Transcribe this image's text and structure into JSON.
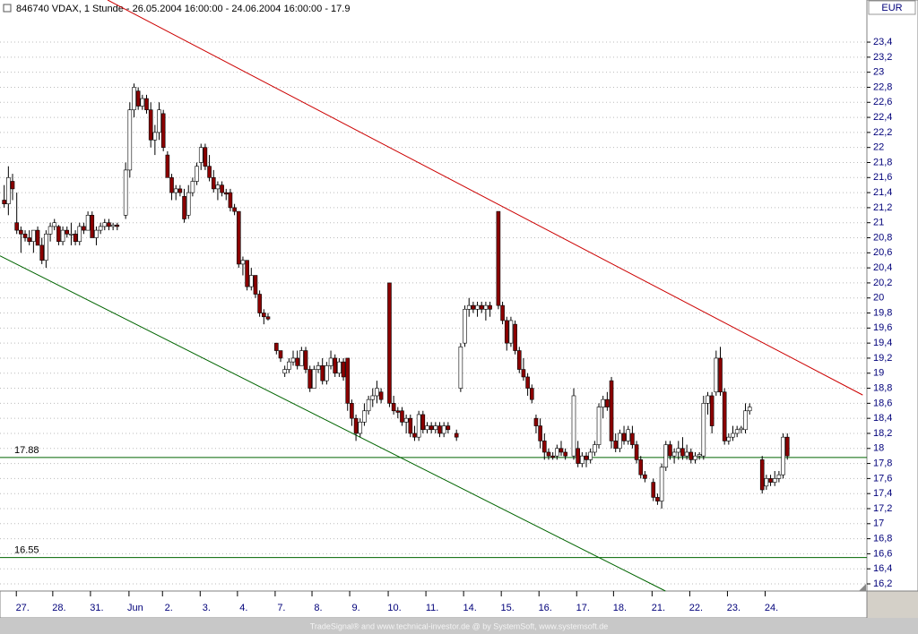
{
  "chart_data": {
    "type": "candlestick",
    "title": "846740  VDAX, 1 Stunde - 26.05.2004 16:00:00 - 24.06.2004 16:00:00 - 17.9",
    "currency": "EUR",
    "footer": "TradeSignal® and www.technical-investor.de @ by SystemSoft, www.systemsoft.de",
    "up_color": "#ffffff",
    "down_color": "#8b0000",
    "grid": true,
    "xlim": [
      0,
      207
    ],
    "ylim": [
      16.105,
      23.96
    ],
    "yticks": [
      {
        "value": 16.2,
        "label": "16,2"
      },
      {
        "value": 16.4,
        "label": "16,4"
      },
      {
        "value": 16.6,
        "label": "16,6"
      },
      {
        "value": 16.8,
        "label": "16,8"
      },
      17,
      {
        "value": 17.2,
        "label": "17,2"
      },
      {
        "value": 17.4,
        "label": "17,4"
      },
      {
        "value": 17.6,
        "label": "17,6"
      },
      {
        "value": 17.8,
        "label": "17,8"
      },
      18,
      {
        "value": 18.2,
        "label": "18,2"
      },
      {
        "value": 18.4,
        "label": "18,4"
      },
      {
        "value": 18.6,
        "label": "18,6"
      },
      {
        "value": 18.8,
        "label": "18,8"
      },
      19,
      {
        "value": 19.2,
        "label": "19,2"
      },
      {
        "value": 19.4,
        "label": "19,4"
      },
      {
        "value": 19.6,
        "label": "19,6"
      },
      {
        "value": 19.8,
        "label": "19,8"
      },
      20,
      {
        "value": 20.2,
        "label": "20,2"
      },
      {
        "value": 20.4,
        "label": "20,4"
      },
      {
        "value": 20.6,
        "label": "20,6"
      },
      {
        "value": 20.8,
        "label": "20,8"
      },
      21,
      {
        "value": 21.2,
        "label": "21,2"
      },
      {
        "value": 21.4,
        "label": "21,4"
      },
      {
        "value": 21.6,
        "label": "21,6"
      },
      {
        "value": 21.8,
        "label": "21,8"
      },
      22,
      {
        "value": 22.2,
        "label": "22,2"
      },
      {
        "value": 22.4,
        "label": "22,4"
      },
      {
        "value": 22.6,
        "label": "22,6"
      },
      {
        "value": 22.8,
        "label": "22,8"
      },
      23,
      {
        "value": 23.2,
        "label": "23,2"
      },
      {
        "value": 23.4,
        "label": "23,4"
      }
    ],
    "xticks": [
      {
        "value": 3.9,
        "label": "27."
      },
      {
        "value": 12.6,
        "label": "28."
      },
      {
        "value": 21.6,
        "label": "31."
      },
      {
        "value": 30.8,
        "label": "Jun"
      },
      {
        "value": 38.8,
        "label": "2."
      },
      {
        "value": 47.8,
        "label": "3."
      },
      {
        "value": 56.7,
        "label": "4."
      },
      {
        "value": 65.7,
        "label": "7."
      },
      {
        "value": 74.5,
        "label": "8."
      },
      {
        "value": 83.5,
        "label": "9."
      },
      {
        "value": 92.7,
        "label": "10."
      },
      {
        "value": 101.7,
        "label": "11."
      },
      {
        "value": 110.7,
        "label": "14."
      },
      {
        "value": 119.7,
        "label": "15."
      },
      {
        "value": 128.7,
        "label": "16."
      },
      {
        "value": 137.7,
        "label": "17."
      },
      {
        "value": 146.5,
        "label": "18."
      },
      {
        "value": 155.7,
        "label": "21."
      },
      {
        "value": 164.7,
        "label": "22."
      },
      {
        "value": 173.7,
        "label": "23."
      },
      {
        "value": 182.7,
        "label": "24."
      }
    ],
    "hlines": [
      {
        "value": 17.88,
        "label": "17.88",
        "color": "#006400"
      },
      {
        "value": 16.55,
        "label": "16.55",
        "color": "#006400"
      }
    ],
    "trendlines": [
      {
        "color": "#cc0000",
        "x": [
          25.7,
          206
        ],
        "y": [
          23.96,
          18.71
        ]
      },
      {
        "color": "#006400",
        "x": [
          0,
          158.9
        ],
        "y": [
          20.56,
          16.105
        ]
      }
    ],
    "candles": [
      [
        1,
        21.3,
        21.5,
        21.2,
        21.25
      ],
      [
        2,
        21.25,
        21.75,
        21.1,
        21.6
      ],
      [
        3,
        21.55,
        21.65,
        21.3,
        21.45
      ],
      [
        4,
        21.0,
        21.4,
        20.85,
        20.9
      ],
      [
        5,
        20.9,
        20.95,
        20.6,
        20.85
      ],
      [
        6,
        20.85,
        20.9,
        20.75,
        20.8
      ],
      [
        7,
        20.8,
        20.9,
        20.7,
        20.75
      ],
      [
        8,
        20.75,
        20.9,
        20.6,
        20.9
      ],
      [
        9,
        20.9,
        20.95,
        20.7,
        20.7
      ],
      [
        10,
        20.7,
        20.8,
        20.45,
        20.5
      ],
      [
        11,
        20.5,
        20.9,
        20.4,
        20.85
      ],
      [
        12,
        20.85,
        21.0,
        20.75,
        20.95
      ],
      [
        13,
        20.95,
        21.05,
        20.9,
        21.0
      ],
      [
        14,
        20.95,
        20.97,
        20.7,
        20.75
      ],
      [
        15,
        20.75,
        20.95,
        20.7,
        20.9
      ],
      [
        16,
        20.9,
        20.95,
        20.8,
        20.85
      ],
      [
        17,
        20.85,
        21.0,
        20.7,
        20.85
      ],
      [
        18,
        20.85,
        20.9,
        20.7,
        20.75
      ],
      [
        19,
        20.75,
        21.0,
        20.7,
        20.95
      ],
      [
        20,
        20.95,
        21.0,
        20.85,
        20.9
      ],
      [
        21,
        20.9,
        21.15,
        20.9,
        21.1
      ],
      [
        22,
        21.1,
        21.15,
        20.8,
        20.8
      ],
      [
        23,
        20.8,
        20.95,
        20.7,
        20.9
      ],
      [
        24,
        20.9,
        21.0,
        20.85,
        20.95
      ],
      [
        25,
        20.95,
        21.05,
        20.9,
        21.0
      ],
      [
        26,
        21.0,
        21.05,
        20.9,
        20.95
      ],
      [
        27,
        20.95,
        21.0,
        20.9,
        20.97
      ],
      [
        28,
        20.97,
        21.0,
        20.9,
        20.95
      ],
      [
        30,
        21.1,
        21.8,
        21.05,
        21.7
      ],
      [
        31,
        21.7,
        22.6,
        21.6,
        22.5
      ],
      [
        32,
        22.5,
        22.85,
        22.4,
        22.8
      ],
      [
        33,
        22.75,
        22.8,
        22.5,
        22.55
      ],
      [
        34,
        22.55,
        22.7,
        22.5,
        22.65
      ],
      [
        35,
        22.65,
        22.7,
        22.45,
        22.5
      ],
      [
        36,
        22.5,
        22.6,
        22.0,
        22.1
      ],
      [
        37,
        22.1,
        22.3,
        21.9,
        22.2
      ],
      [
        38,
        22.2,
        22.6,
        22.1,
        22.5
      ],
      [
        39,
        22.45,
        22.5,
        21.95,
        22.0
      ],
      [
        40,
        21.9,
        21.95,
        21.6,
        21.6
      ],
      [
        41,
        21.6,
        21.65,
        21.3,
        21.4
      ],
      [
        42,
        21.4,
        21.5,
        21.3,
        21.45
      ],
      [
        43,
        21.45,
        21.5,
        21.35,
        21.4
      ],
      [
        44,
        21.35,
        21.45,
        21.0,
        21.05
      ],
      [
        45,
        21.1,
        21.5,
        21.05,
        21.4
      ],
      [
        46,
        21.4,
        21.6,
        21.35,
        21.55
      ],
      [
        47,
        21.55,
        21.8,
        21.5,
        21.75
      ],
      [
        48,
        21.8,
        22.05,
        21.7,
        22.0
      ],
      [
        49,
        22.0,
        22.05,
        21.7,
        21.75
      ],
      [
        50,
        21.75,
        21.9,
        21.55,
        21.6
      ],
      [
        51,
        21.6,
        21.7,
        21.4,
        21.45
      ],
      [
        52,
        21.45,
        21.55,
        21.3,
        21.5
      ],
      [
        53,
        21.5,
        21.55,
        21.35,
        21.4
      ],
      [
        54,
        21.4,
        21.45,
        21.3,
        21.38
      ],
      [
        55,
        21.4,
        21.45,
        21.15,
        21.2
      ],
      [
        56,
        21.2,
        21.25,
        21.1,
        21.15
      ],
      [
        57,
        21.15,
        21.15,
        20.4,
        20.45
      ],
      [
        58,
        20.45,
        20.55,
        20.3,
        20.5
      ],
      [
        59,
        20.5,
        20.5,
        20.1,
        20.15
      ],
      [
        60,
        20.15,
        20.4,
        20.1,
        20.3
      ],
      [
        61,
        20.3,
        20.3,
        20.0,
        20.05
      ],
      [
        62,
        20.05,
        20.1,
        19.75,
        19.8
      ],
      [
        63,
        19.8,
        19.85,
        19.65,
        19.75
      ],
      [
        64,
        19.75,
        19.8,
        19.7,
        19.72
      ],
      [
        66,
        19.4,
        19.4,
        19.25,
        19.3
      ],
      [
        67,
        19.3,
        19.3,
        19.15,
        19.2
      ],
      [
        68,
        19.0,
        19.1,
        18.95,
        19.05
      ],
      [
        69,
        19.05,
        19.2,
        19.0,
        19.15
      ],
      [
        70,
        19.15,
        19.3,
        19.1,
        19.2
      ],
      [
        71,
        19.2,
        19.3,
        19.05,
        19.1
      ],
      [
        72,
        19.1,
        19.35,
        19.1,
        19.3
      ],
      [
        73,
        19.3,
        19.35,
        19.0,
        19.05
      ],
      [
        74,
        19.05,
        19.1,
        18.75,
        18.8
      ],
      [
        75,
        18.8,
        19.1,
        18.8,
        19.05
      ],
      [
        76,
        19.05,
        19.15,
        19.0,
        19.1
      ],
      [
        77,
        19.1,
        19.2,
        18.85,
        18.9
      ],
      [
        78,
        18.9,
        19.15,
        18.85,
        19.1
      ],
      [
        79,
        19.1,
        19.3,
        19.05,
        19.2
      ],
      [
        80,
        19.2,
        19.25,
        18.95,
        19.0
      ],
      [
        81,
        19.0,
        19.2,
        18.95,
        19.15
      ],
      [
        82,
        19.15,
        19.2,
        18.9,
        18.95
      ],
      [
        83,
        19.2,
        19.2,
        18.5,
        18.6
      ],
      [
        84,
        18.6,
        18.65,
        18.3,
        18.4
      ],
      [
        85,
        18.4,
        18.45,
        18.1,
        18.2
      ],
      [
        86,
        18.2,
        18.4,
        18.15,
        18.35
      ],
      [
        87,
        18.35,
        18.6,
        18.3,
        18.5
      ],
      [
        88,
        18.5,
        18.7,
        18.45,
        18.65
      ],
      [
        89,
        18.65,
        18.8,
        18.55,
        18.7
      ],
      [
        90,
        18.7,
        18.9,
        18.6,
        18.8
      ],
      [
        91,
        18.75,
        18.8,
        18.6,
        18.65
      ],
      [
        93,
        20.2,
        20.2,
        18.55,
        18.6
      ],
      [
        94,
        18.6,
        18.7,
        18.45,
        18.5
      ],
      [
        95,
        18.5,
        18.55,
        18.4,
        18.48
      ],
      [
        96,
        18.5,
        18.55,
        18.3,
        18.35
      ],
      [
        97,
        18.35,
        18.45,
        18.2,
        18.4
      ],
      [
        98,
        18.4,
        18.45,
        18.15,
        18.2
      ],
      [
        99,
        18.2,
        18.3,
        18.1,
        18.15
      ],
      [
        100,
        18.15,
        18.5,
        18.1,
        18.45
      ],
      [
        101,
        18.45,
        18.5,
        18.2,
        18.25
      ],
      [
        102,
        18.25,
        18.35,
        18.2,
        18.3
      ],
      [
        103,
        18.3,
        18.35,
        18.2,
        18.25
      ],
      [
        104,
        18.25,
        18.35,
        18.2,
        18.3
      ],
      [
        105,
        18.3,
        18.35,
        18.15,
        18.2
      ],
      [
        106,
        18.2,
        18.35,
        18.15,
        18.3
      ],
      [
        107,
        18.3,
        18.35,
        18.2,
        18.25
      ],
      [
        109,
        18.2,
        18.25,
        18.1,
        18.15
      ],
      [
        110,
        18.8,
        19.4,
        18.75,
        19.35
      ],
      [
        111,
        19.4,
        19.9,
        19.35,
        19.85
      ],
      [
        112,
        19.85,
        20.0,
        19.75,
        19.9
      ],
      [
        113,
        19.9,
        19.95,
        19.8,
        19.85
      ],
      [
        114,
        19.85,
        19.95,
        19.75,
        19.9
      ],
      [
        115,
        19.9,
        19.95,
        19.8,
        19.85
      ],
      [
        116,
        19.85,
        19.95,
        19.7,
        19.9
      ],
      [
        117,
        19.9,
        19.95,
        19.75,
        19.85
      ],
      [
        119,
        21.15,
        21.15,
        19.85,
        19.9
      ],
      [
        120,
        19.9,
        19.95,
        19.65,
        19.7
      ],
      [
        121,
        19.7,
        19.75,
        19.3,
        19.4
      ],
      [
        122,
        19.4,
        19.75,
        19.35,
        19.7
      ],
      [
        123,
        19.65,
        19.7,
        19.25,
        19.3
      ],
      [
        124,
        19.3,
        19.35,
        19.0,
        19.05
      ],
      [
        125,
        19.05,
        19.2,
        18.9,
        18.95
      ],
      [
        126,
        18.95,
        19.0,
        18.7,
        18.8
      ],
      [
        127,
        18.8,
        18.85,
        18.6,
        18.65
      ],
      [
        128,
        18.4,
        18.45,
        18.2,
        18.3
      ],
      [
        129,
        18.3,
        18.4,
        18.0,
        18.1
      ],
      [
        130,
        18.1,
        18.2,
        17.85,
        17.95
      ],
      [
        131,
        17.95,
        18.0,
        17.85,
        17.9
      ],
      [
        132,
        17.9,
        17.95,
        17.85,
        17.88
      ],
      [
        133,
        17.9,
        18.05,
        17.85,
        18.0
      ],
      [
        134,
        18.0,
        18.1,
        17.9,
        17.95
      ],
      [
        135,
        17.95,
        18.0,
        17.85,
        17.9
      ],
      [
        137,
        17.9,
        18.8,
        17.85,
        18.7
      ],
      [
        138,
        18.0,
        18.1,
        17.75,
        17.8
      ],
      [
        139,
        17.8,
        17.95,
        17.75,
        17.9
      ],
      [
        140,
        17.9,
        17.95,
        17.75,
        17.85
      ],
      [
        141,
        17.85,
        18.0,
        17.8,
        17.95
      ],
      [
        142,
        17.95,
        18.1,
        17.9,
        18.05
      ],
      [
        143,
        18.05,
        18.6,
        18.0,
        18.55
      ],
      [
        144,
        18.55,
        18.7,
        18.4,
        18.65
      ],
      [
        145,
        18.65,
        18.75,
        18.5,
        18.55
      ],
      [
        146,
        18.9,
        18.95,
        18.0,
        18.1
      ],
      [
        147,
        18.1,
        18.2,
        17.95,
        18.0
      ],
      [
        148,
        18.0,
        18.25,
        17.95,
        18.2
      ],
      [
        149,
        18.2,
        18.3,
        18.05,
        18.1
      ],
      [
        150,
        18.1,
        18.3,
        18.05,
        18.25
      ],
      [
        151,
        18.2,
        18.3,
        18.0,
        18.05
      ],
      [
        152,
        18.05,
        18.1,
        17.8,
        17.85
      ],
      [
        153,
        17.85,
        17.9,
        17.6,
        17.65
      ],
      [
        154,
        17.65,
        17.7,
        17.55,
        17.6
      ],
      [
        156,
        17.55,
        17.6,
        17.3,
        17.35
      ],
      [
        157,
        17.35,
        17.4,
        17.25,
        17.3
      ],
      [
        158,
        17.3,
        17.8,
        17.2,
        17.75
      ],
      [
        159,
        17.75,
        18.1,
        17.7,
        18.05
      ],
      [
        160,
        18.05,
        18.1,
        17.85,
        17.9
      ],
      [
        161,
        17.9,
        18.0,
        17.8,
        17.95
      ],
      [
        162,
        17.95,
        18.1,
        17.85,
        18.0
      ],
      [
        163,
        18.0,
        18.15,
        17.85,
        17.9
      ],
      [
        164,
        17.9,
        18.05,
        17.85,
        17.95
      ],
      [
        165,
        17.95,
        18.0,
        17.8,
        17.85
      ],
      [
        166,
        17.85,
        17.95,
        17.8,
        17.9
      ],
      [
        167,
        17.9,
        17.95,
        17.85,
        17.92
      ],
      [
        168,
        17.9,
        18.7,
        17.85,
        18.6
      ],
      [
        169,
        18.6,
        18.75,
        18.45,
        18.7
      ],
      [
        170,
        18.7,
        18.75,
        18.2,
        18.3
      ],
      [
        171,
        18.75,
        19.3,
        18.7,
        19.2
      ],
      [
        172,
        19.2,
        19.35,
        18.7,
        18.75
      ],
      [
        173,
        18.75,
        18.8,
        18.05,
        18.1
      ],
      [
        174,
        18.1,
        18.2,
        18.05,
        18.15
      ],
      [
        175,
        18.15,
        18.3,
        18.1,
        18.2
      ],
      [
        176,
        18.2,
        18.3,
        18.15,
        18.25
      ],
      [
        177,
        18.25,
        18.3,
        18.2,
        18.27
      ],
      [
        178,
        18.25,
        18.6,
        18.2,
        18.5
      ],
      [
        179,
        18.5,
        18.6,
        18.45,
        18.55
      ],
      [
        182,
        17.85,
        17.9,
        17.4,
        17.45
      ],
      [
        183,
        17.5,
        17.65,
        17.45,
        17.6
      ],
      [
        184,
        17.6,
        17.65,
        17.5,
        17.55
      ],
      [
        185,
        17.55,
        17.7,
        17.5,
        17.6
      ],
      [
        186,
        17.6,
        17.7,
        17.55,
        17.65
      ],
      [
        187,
        17.65,
        18.2,
        17.6,
        18.15
      ],
      [
        188,
        18.15,
        18.2,
        17.85,
        17.9
      ]
    ]
  }
}
